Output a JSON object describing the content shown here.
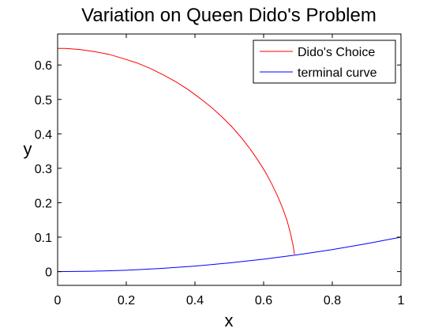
{
  "chart_data": {
    "type": "line",
    "title": "Variation on Queen Dido's Problem",
    "xlabel": "x",
    "ylabel": "y",
    "xlim": [
      0,
      1
    ],
    "ylim": [
      -0.04,
      0.69
    ],
    "xticks": [
      0,
      0.2,
      0.4,
      0.6,
      0.8,
      1
    ],
    "xtick_labels": [
      "0",
      "0.2",
      "0.4",
      "0.6",
      "0.8",
      "1"
    ],
    "yticks": [
      0,
      0.1,
      0.2,
      0.3,
      0.4,
      0.5,
      0.6
    ],
    "ytick_labels": [
      "0",
      "0.1",
      "0.2",
      "0.3",
      "0.4",
      "0.5",
      "0.6"
    ],
    "grid": false,
    "legend_position": "top-right",
    "series": [
      {
        "name": "Dido's Choice",
        "color": "#ff0000",
        "x": [
          0.0,
          0.022,
          0.065,
          0.107,
          0.149,
          0.19,
          0.231,
          0.27,
          0.308,
          0.345,
          0.381,
          0.415,
          0.448,
          0.479,
          0.508,
          0.535,
          0.56,
          0.583,
          0.604,
          0.623,
          0.64,
          0.655,
          0.668,
          0.678,
          0.686,
          0.69
        ],
        "y": [
          0.648,
          0.648,
          0.645,
          0.639,
          0.631,
          0.619,
          0.606,
          0.59,
          0.571,
          0.551,
          0.528,
          0.503,
          0.477,
          0.449,
          0.42,
          0.389,
          0.357,
          0.324,
          0.291,
          0.256,
          0.221,
          0.185,
          0.149,
          0.112,
          0.075,
          0.05
        ]
      },
      {
        "name": "terminal curve",
        "color": "#0000ff",
        "x": [
          0,
          0.1,
          0.2,
          0.3,
          0.4,
          0.5,
          0.6,
          0.7,
          0.8,
          0.9,
          1.0
        ],
        "y": [
          0,
          0.001,
          0.004,
          0.009,
          0.016,
          0.025,
          0.036,
          0.049,
          0.064,
          0.081,
          0.1
        ]
      }
    ]
  }
}
